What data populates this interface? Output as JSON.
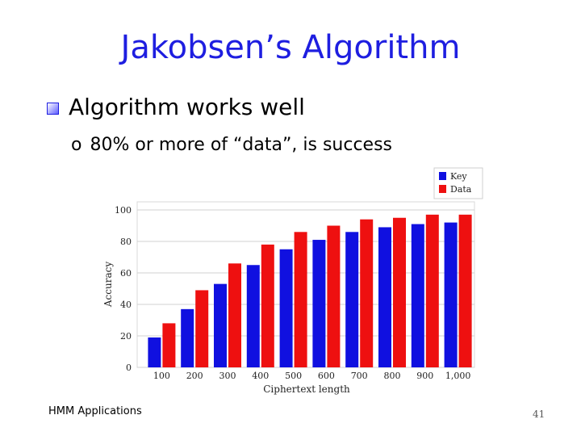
{
  "slide": {
    "title": "Jakobsen’s Algorithm",
    "bullet1": "Algorithm works well",
    "bullet2_marker": "o",
    "bullet2": "80% or more of “data”, is success",
    "footer": "HMM Applications",
    "page_number": "41"
  },
  "chart_data": {
    "type": "bar",
    "xlabel": "Ciphertext length",
    "ylabel": "Accuracy",
    "ylim": [
      0,
      100
    ],
    "yticks": [
      0,
      20,
      40,
      60,
      80,
      100
    ],
    "grid": true,
    "legend_position": "top-right",
    "categories": [
      "100",
      "200",
      "300",
      "400",
      "500",
      "600",
      "700",
      "800",
      "900",
      "1,000"
    ],
    "series": [
      {
        "name": "Key",
        "color": "#1010e0",
        "values": [
          19,
          37,
          53,
          65,
          75,
          81,
          86,
          89,
          91,
          92
        ]
      },
      {
        "name": "Data",
        "color": "#ee1010",
        "values": [
          28,
          49,
          66,
          78,
          86,
          90,
          94,
          95,
          97,
          97
        ]
      }
    ]
  }
}
